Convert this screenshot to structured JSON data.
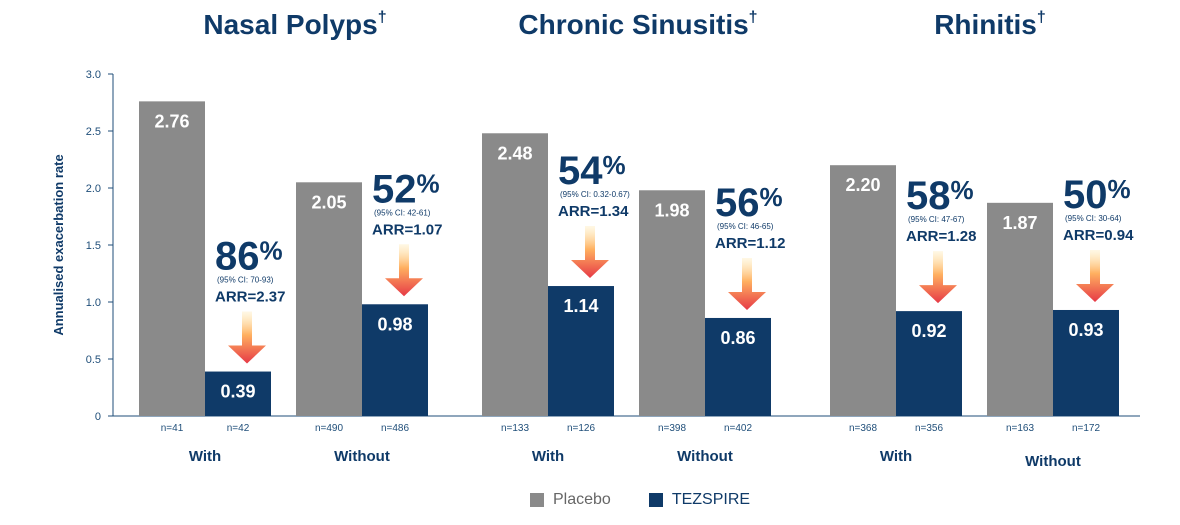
{
  "chart_data": {
    "type": "bar",
    "ylabel": "Annualised exacerbation rate",
    "ylim": [
      0,
      3.0
    ],
    "yticks": [
      "0",
      "0.5",
      "1.0",
      "1.5",
      "2.0",
      "2.5",
      "3.0"
    ],
    "colors": {
      "placebo": "#8a8a8a",
      "tezspire": "#0f3a68",
      "arrow_top": "#ffd27a",
      "arrow_bottom": "#e63946",
      "annotation": "#0f3a68"
    },
    "series_names": [
      "Placebo",
      "TEZSPIRE"
    ],
    "panels": [
      {
        "title": "Nasal Polyps",
        "title_mark": "†",
        "groups": [
          {
            "label": "With",
            "placebo": 2.76,
            "tezspire": 0.39,
            "placebo_label": "2.76",
            "tezspire_label": "0.39",
            "n_placebo": "n=41",
            "n_tezspire": "n=42",
            "reduction_num": "86",
            "reduction_pct": "%",
            "ci": "(95% CI: 70-93)",
            "arr": "ARR=2.37"
          },
          {
            "label": "Without",
            "placebo": 2.05,
            "tezspire": 0.98,
            "placebo_label": "2.05",
            "tezspire_label": "0.98",
            "n_placebo": "n=490",
            "n_tezspire": "n=486",
            "reduction_num": "52",
            "reduction_pct": "%",
            "ci": "(95% CI: 42-61)",
            "arr": "ARR=1.07"
          }
        ]
      },
      {
        "title": "Chronic Sinusitis",
        "title_mark": "†",
        "groups": [
          {
            "label": "With",
            "placebo": 2.48,
            "tezspire": 1.14,
            "placebo_label": "2.48",
            "tezspire_label": "1.14",
            "n_placebo": "n=133",
            "n_tezspire": "n=126",
            "reduction_num": "54",
            "reduction_pct": "%",
            "ci": "(95% CI: 0.32-0.67)",
            "arr": "ARR=1.34"
          },
          {
            "label": "Without",
            "placebo": 1.98,
            "tezspire": 0.86,
            "placebo_label": "1.98",
            "tezspire_label": "0.86",
            "n_placebo": "n=398",
            "n_tezspire": "n=402",
            "reduction_num": "56",
            "reduction_pct": "%",
            "ci": "(95% CI: 46-65)",
            "arr": "ARR=1.12"
          }
        ]
      },
      {
        "title": "Rhinitis",
        "title_mark": "†",
        "groups": [
          {
            "label": "With",
            "placebo": 2.2,
            "tezspire": 0.92,
            "placebo_label": "2.20",
            "tezspire_label": "0.92",
            "n_placebo": "n=368",
            "n_tezspire": "n=356",
            "reduction_num": "58",
            "reduction_pct": "%",
            "ci": "(95% CI: 47-67)",
            "arr": "ARR=1.28"
          },
          {
            "label": "Without",
            "placebo": 1.87,
            "tezspire": 0.93,
            "placebo_label": "1.87",
            "tezspire_label": "0.93",
            "n_placebo": "n=163",
            "n_tezspire": "n=172",
            "reduction_num": "50",
            "reduction_pct": "%",
            "ci": "(95% CI: 30-64)",
            "arr": "ARR=0.94"
          }
        ]
      }
    ]
  }
}
